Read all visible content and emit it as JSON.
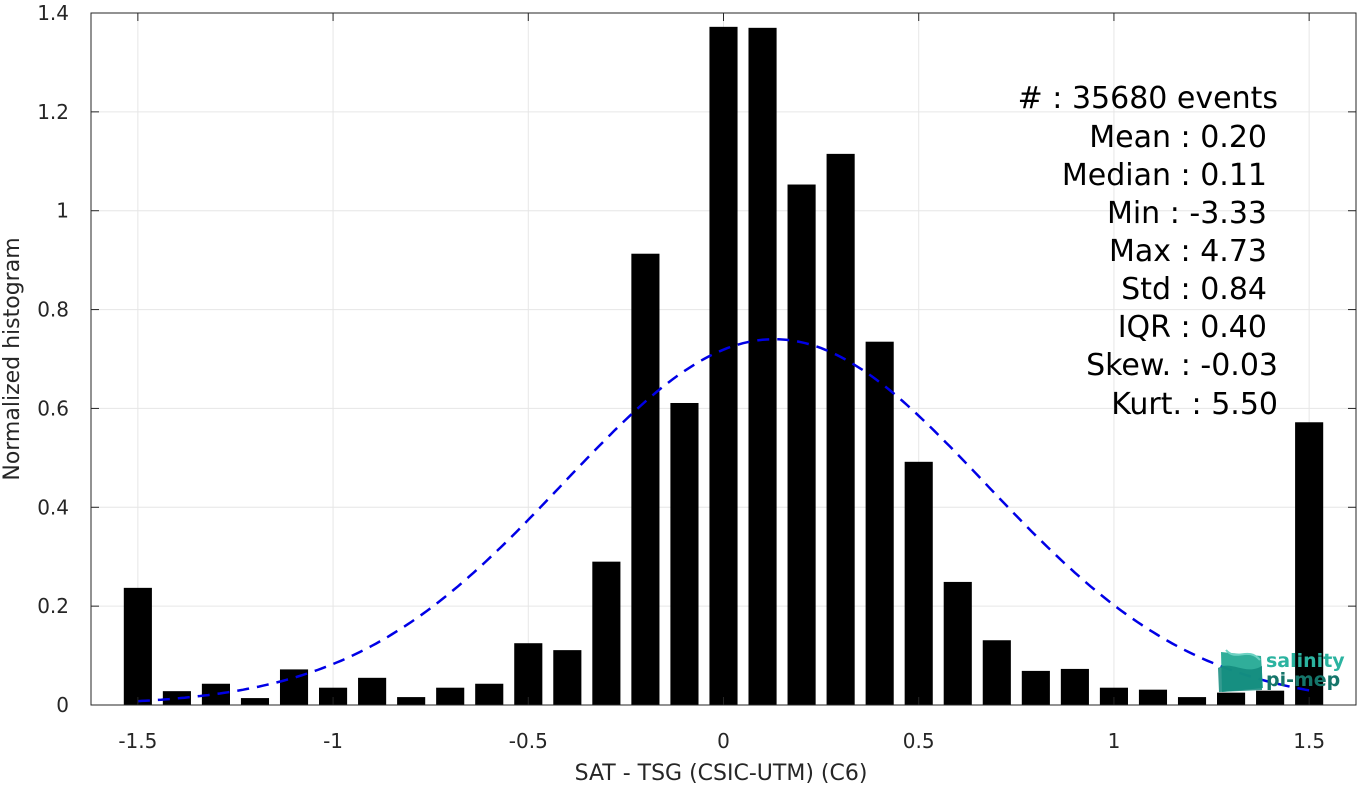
{
  "chart_data": {
    "type": "bar",
    "xlabel": "SAT - TSG (CSIC-UTM) (C6)",
    "ylabel": "Normalized histogram",
    "xlim": [
      -1.62,
      1.62
    ],
    "ylim": [
      0,
      1.4
    ],
    "xticks": [
      -1.5,
      -1,
      -0.5,
      0,
      0.5,
      1,
      1.5
    ],
    "xtick_labels": [
      "-1.5",
      "-1",
      "-0.5",
      "0",
      "0.5",
      "1",
      "1.5"
    ],
    "yticks": [
      0,
      0.2,
      0.4,
      0.6,
      0.8,
      1,
      1.2,
      1.4
    ],
    "ytick_labels": [
      "0",
      "0.2",
      "0.4",
      "0.6",
      "0.8",
      "1",
      "1.2",
      "1.4"
    ],
    "grid": true,
    "bar_color": "#000000",
    "curve_color": "#0000e6",
    "bins_x": [
      -1.5,
      -1.4,
      -1.3,
      -1.2,
      -1.1,
      -1.0,
      -0.9,
      -0.8,
      -0.7,
      -0.6,
      -0.5,
      -0.4,
      -0.3,
      -0.2,
      -0.1,
      0.0,
      0.1,
      0.2,
      0.3,
      0.4,
      0.5,
      0.6,
      0.7,
      0.8,
      0.9,
      1.0,
      1.1,
      1.2,
      1.3,
      1.4,
      1.5
    ],
    "values": [
      0.237,
      0.028,
      0.043,
      0.014,
      0.072,
      0.035,
      0.055,
      0.016,
      0.035,
      0.043,
      0.125,
      0.111,
      0.29,
      0.913,
      0.611,
      1.372,
      1.37,
      1.053,
      1.115,
      0.735,
      0.492,
      0.249,
      0.131,
      0.069,
      0.073,
      0.035,
      0.031,
      0.016,
      0.025,
      0.029,
      0.572
    ],
    "fit": {
      "type": "normal",
      "mean": 0.13,
      "std": 0.54,
      "peak": 0.74,
      "style": "dashed"
    },
    "annotations": [
      "#  : 35680 events",
      "Mean : 0.20",
      "Median : 0.11",
      "Min : -3.33",
      "Max : 4.73",
      "Std : 0.84",
      "IQR : 0.40",
      "Skew. : -0.03",
      "Kurt. : 5.50"
    ]
  },
  "logo": {
    "line1": "salinity",
    "line2": "pi-mep"
  }
}
